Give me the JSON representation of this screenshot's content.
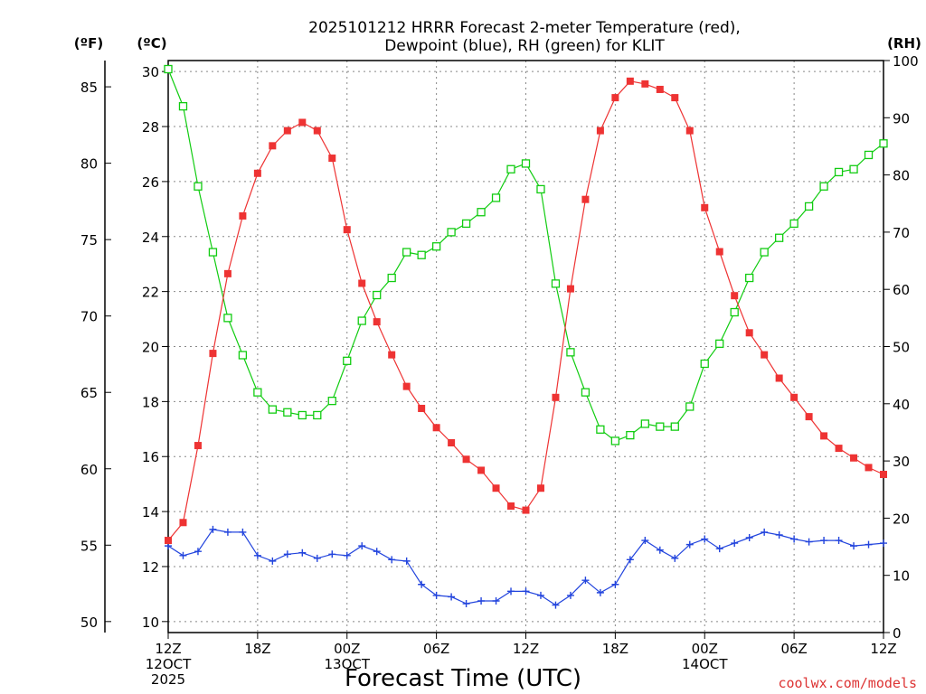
{
  "chart_data": {
    "type": "line",
    "title_lines": [
      "2025101212 HRRR Forecast 2-meter Temperature (red),",
      "Dewpoint (blue), RH (green) for KLIT"
    ],
    "unit_labels": {
      "fahrenheit": "(ºF)",
      "celsius": "(ºC)",
      "rh": "(RH)"
    },
    "xlabel": "Forecast Time (UTC)",
    "credit": "coolwx.com/models",
    "x_hours": {
      "start": 0,
      "end": 48,
      "step": 1
    },
    "xlim": [
      0,
      48
    ],
    "x_ticks": [
      {
        "hour": 0,
        "lines": [
          "12Z",
          "12OCT",
          "2025"
        ]
      },
      {
        "hour": 6,
        "lines": [
          "18Z"
        ]
      },
      {
        "hour": 12,
        "lines": [
          "00Z",
          "13OCT"
        ]
      },
      {
        "hour": 18,
        "lines": [
          "06Z"
        ]
      },
      {
        "hour": 24,
        "lines": [
          "12Z"
        ]
      },
      {
        "hour": 30,
        "lines": [
          "18Z"
        ]
      },
      {
        "hour": 36,
        "lines": [
          "00Z",
          "14OCT"
        ]
      },
      {
        "hour": 42,
        "lines": [
          "06Z"
        ]
      },
      {
        "hour": 48,
        "lines": [
          "12Z"
        ]
      }
    ],
    "celsius_axis": {
      "range": [
        9.6,
        30.4
      ],
      "ticks": [
        10,
        12,
        14,
        16,
        18,
        20,
        22,
        24,
        26,
        28,
        30
      ]
    },
    "fahrenheit_ticks": [
      50,
      55,
      60,
      65,
      70,
      75,
      80,
      85
    ],
    "rh_axis": {
      "range": [
        0,
        100
      ],
      "ticks": [
        0,
        10,
        20,
        30,
        40,
        50,
        60,
        70,
        80,
        90,
        100
      ]
    },
    "grid": true,
    "colors": {
      "temperature": "#ee3333",
      "dewpoint": "#2244dd",
      "rh": "#11cc11"
    },
    "series": [
      {
        "name": "Temperature",
        "unit": "C",
        "values": [
          12.95,
          13.6,
          16.4,
          19.75,
          22.65,
          24.75,
          26.3,
          27.3,
          27.85,
          28.15,
          27.85,
          26.85,
          24.25,
          22.3,
          20.9,
          19.7,
          18.55,
          17.75,
          17.05,
          16.5,
          15.9,
          15.5,
          14.85,
          14.2,
          14.05,
          14.85,
          18.15,
          22.1,
          25.35,
          27.85,
          29.05,
          29.65,
          29.55,
          29.35,
          29.05,
          27.85,
          25.05,
          23.45,
          21.85,
          20.5,
          19.7,
          18.85,
          18.15,
          17.45,
          16.75,
          16.3,
          15.95,
          15.6,
          15.35
        ]
      },
      {
        "name": "Dewpoint",
        "unit": "C",
        "values": [
          12.75,
          12.4,
          12.55,
          13.35,
          13.25,
          13.25,
          12.4,
          12.2,
          12.45,
          12.5,
          12.3,
          12.45,
          12.4,
          12.75,
          12.55,
          12.25,
          12.2,
          11.35,
          10.95,
          10.9,
          10.65,
          10.75,
          10.75,
          11.1,
          11.1,
          10.95,
          10.6,
          10.95,
          11.5,
          11.05,
          11.35,
          12.25,
          12.95,
          12.6,
          12.3,
          12.8,
          13.0,
          12.65,
          12.85,
          13.05,
          13.25,
          13.15,
          13.0,
          12.9,
          12.95,
          12.95,
          12.75,
          12.8,
          12.85
        ]
      },
      {
        "name": "RH",
        "unit": "%",
        "values": [
          98.5,
          92,
          78,
          66.5,
          55,
          48.5,
          42,
          39,
          38.5,
          38,
          38,
          40.5,
          47.5,
          54.5,
          59,
          62,
          66.5,
          66,
          67.5,
          70,
          71.5,
          73.5,
          76,
          81,
          82,
          77.5,
          61,
          49,
          42,
          35.5,
          33.5,
          34.5,
          36.5,
          36,
          36,
          39.5,
          47,
          50.5,
          56,
          62,
          66.5,
          69,
          71.5,
          74.5,
          78,
          80.5,
          81,
          83.5,
          85.5
        ]
      }
    ]
  }
}
